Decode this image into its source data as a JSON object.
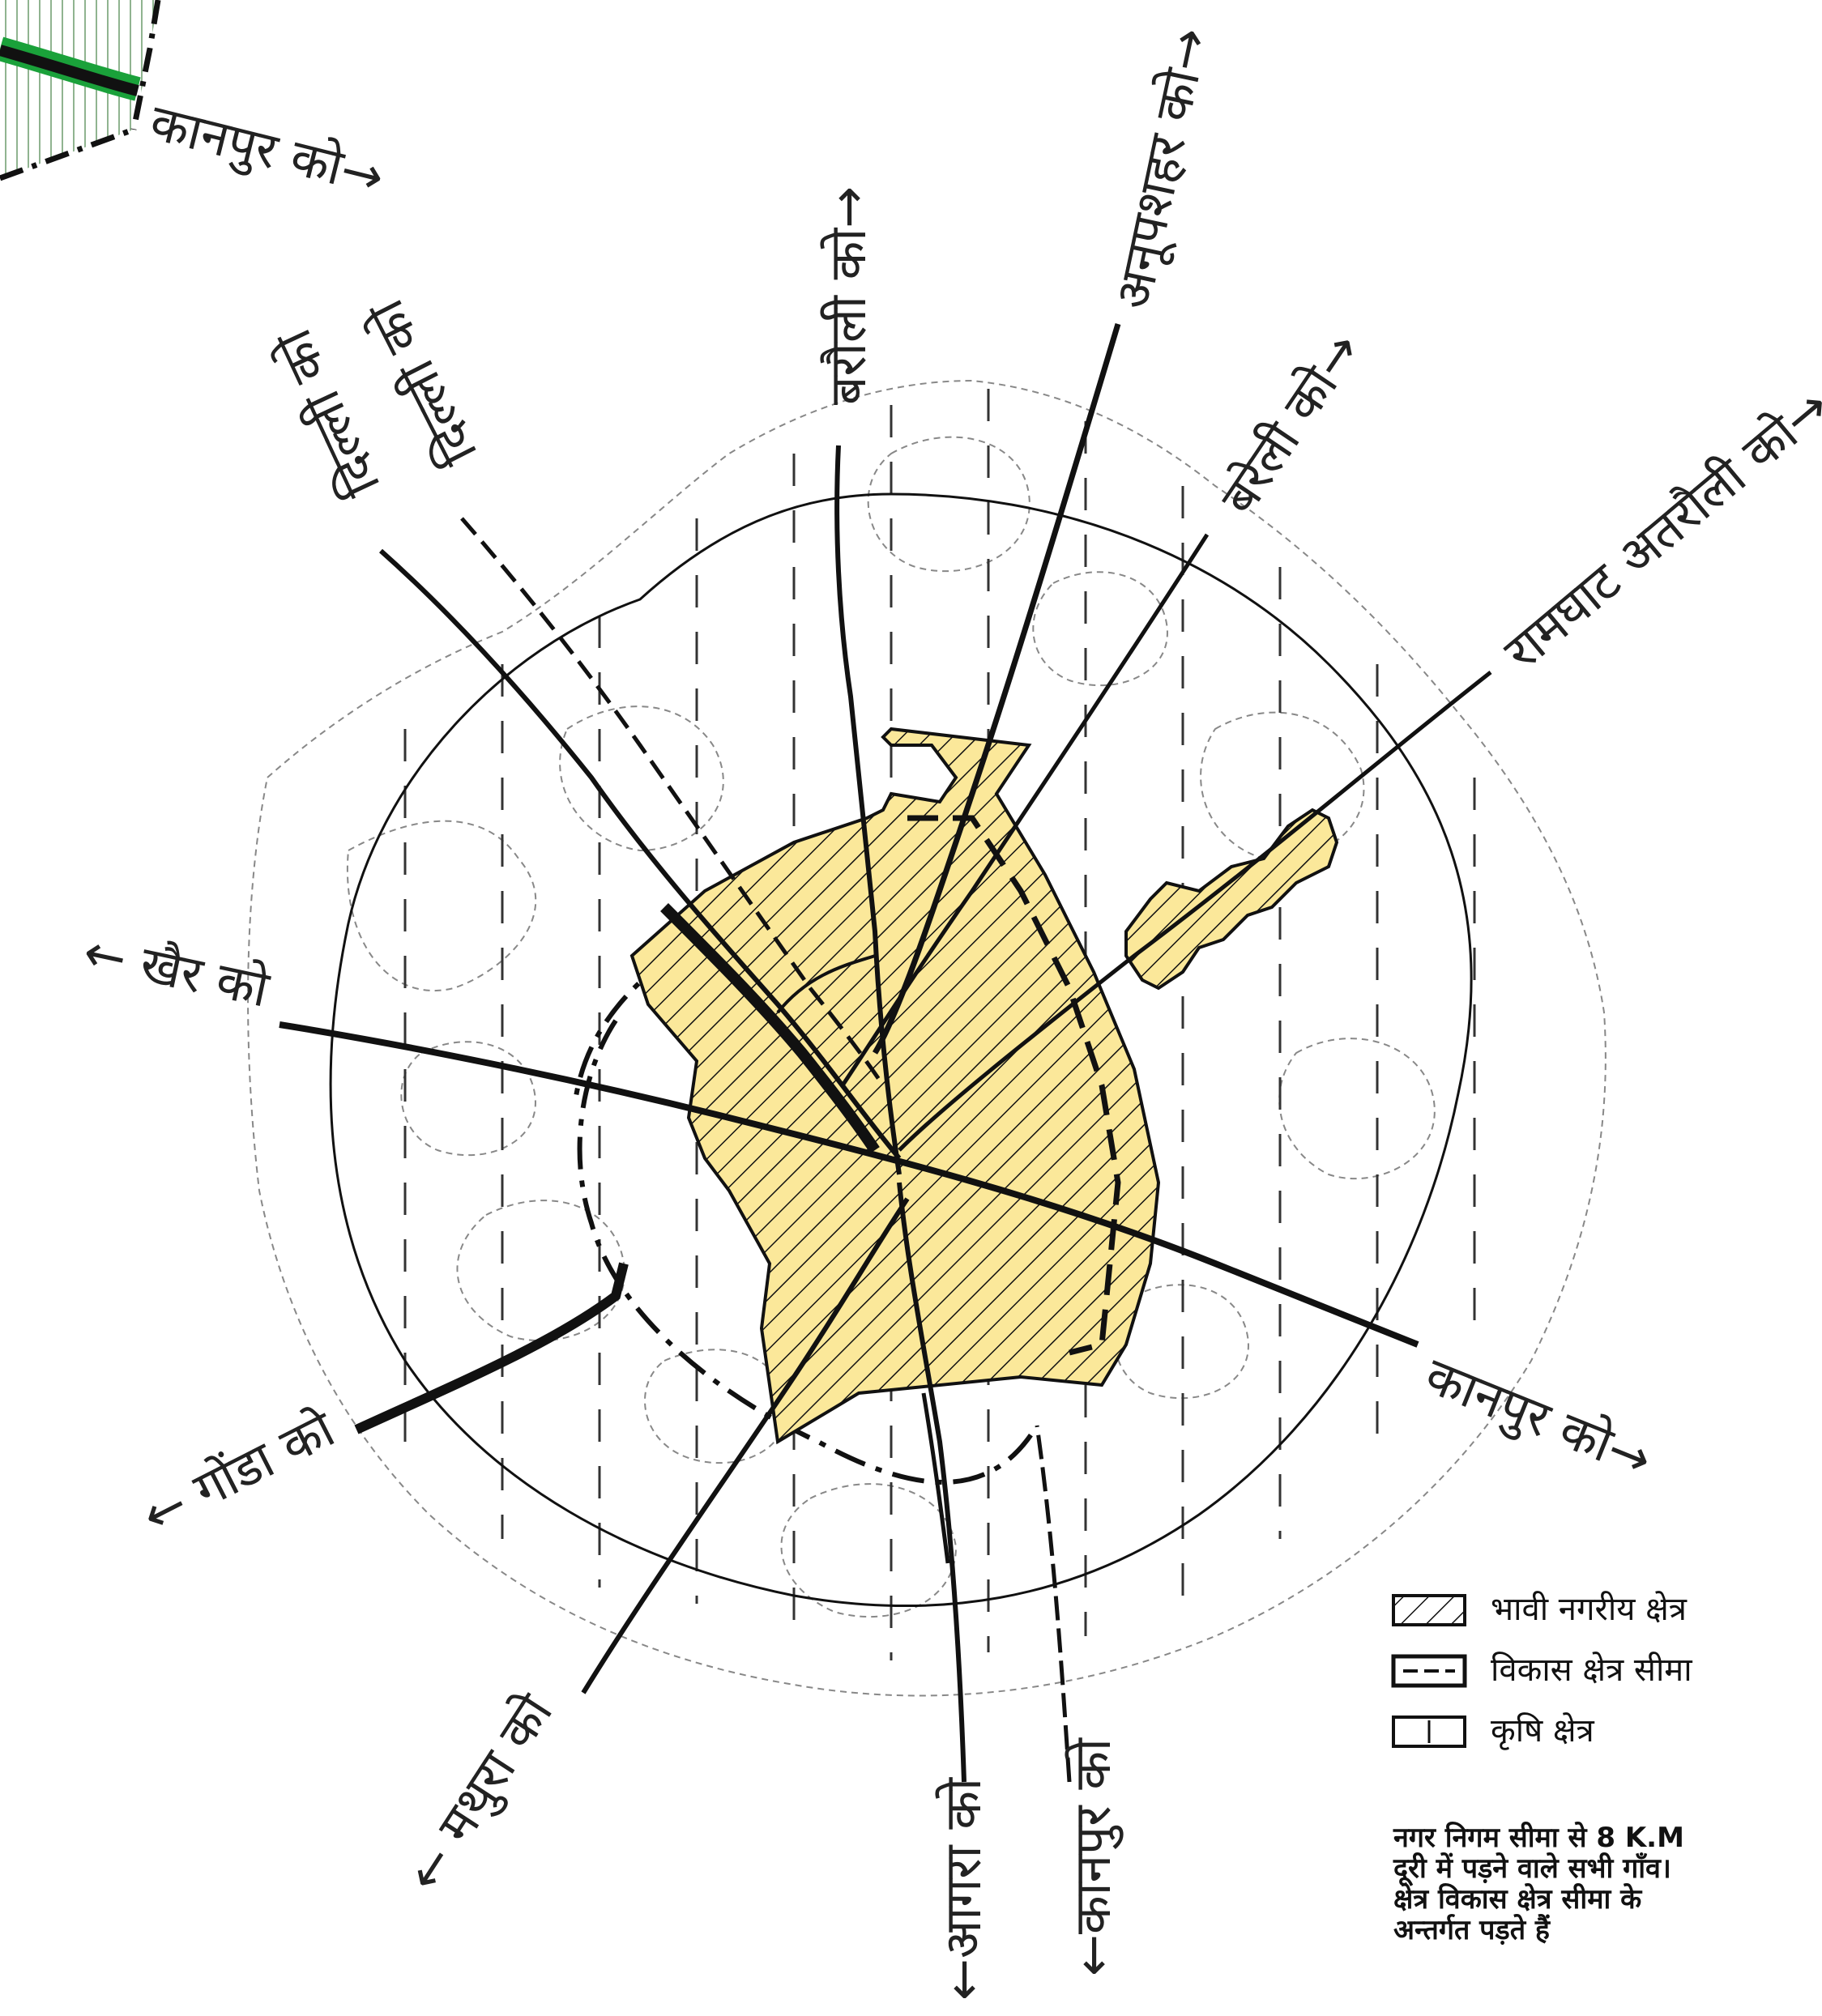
{
  "roads": {
    "kanpur_top": "कानपुर को→",
    "bareli_top": "बरौली को→",
    "anupshahar": "अनूपशहर को→",
    "bareli_right": "बरेली को→",
    "ramghat": "रामघाट अतरौली को→",
    "delhi_1": "दिल्ली को",
    "delhi_2": "दिल्ली को",
    "khair": "← खैर को",
    "kanpur_right": "कानपुर को→",
    "gonda": "← गोंडा को",
    "mathura": "← मथुरा को",
    "agra": "←आगरा को",
    "kanpur_bottom": "←कानपुर को"
  },
  "legend": {
    "future_urban": "भावी नगरीय क्षेत्र",
    "development_boundary": "विकास क्षेत्र सीमा",
    "agriculture": "कृषि क्षेत्र"
  },
  "note": {
    "line1": "नगर निगम सीमा से 8 K.M",
    "line2": "दूरी में पड़ने वाले सभी गाँव।",
    "line3": "क्षेत्र विकास क्षेत्र सीमा के",
    "line4": "अन्तर्गत पड़ते हैं"
  },
  "colors": {
    "urban_fill": "#fbe89a",
    "line": "#111111",
    "green_road": "#1aa13a"
  }
}
